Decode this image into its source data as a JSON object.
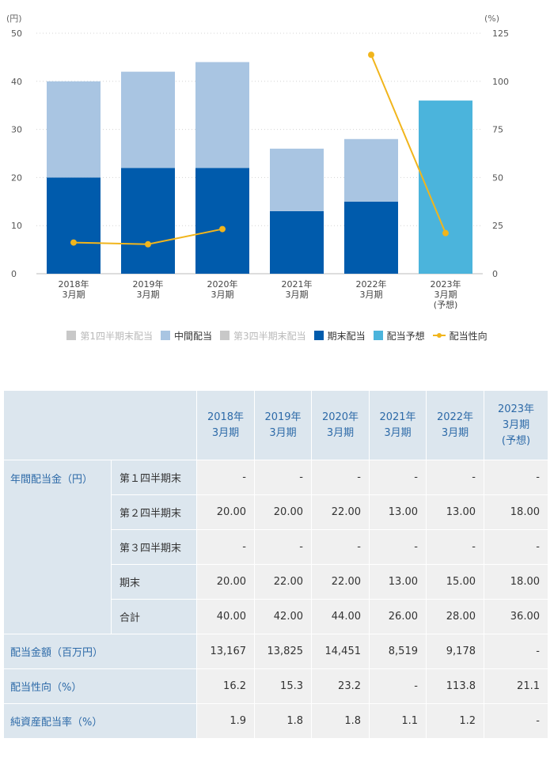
{
  "chart_data": {
    "type": "bar",
    "stacked": true,
    "categories": [
      [
        "2018年",
        "3月期"
      ],
      [
        "2019年",
        "3月期"
      ],
      [
        "2020年",
        "3月期"
      ],
      [
        "2021年",
        "3月期"
      ],
      [
        "2022年",
        "3月期"
      ],
      [
        "2023年",
        "3月期",
        "(予想)"
      ]
    ],
    "y_left": {
      "unit": "(円)",
      "range": [
        0,
        50
      ],
      "ticks": [
        0,
        10,
        20,
        30,
        40,
        50
      ]
    },
    "y_right": {
      "unit": "(%)",
      "range": [
        0,
        125
      ],
      "ticks": [
        0,
        25,
        50,
        75,
        100,
        125
      ]
    },
    "series": [
      {
        "name": "第1四半期末配当",
        "axis": "left",
        "color": "#c8c8c8",
        "values": [
          0,
          0,
          0,
          0,
          0,
          0
        ]
      },
      {
        "name": "期末配当",
        "axis": "left",
        "color": "#005bac",
        "values": [
          20,
          22,
          22,
          13,
          15,
          0
        ]
      },
      {
        "name": "中間配当",
        "axis": "left",
        "color": "#a9c5e2",
        "values": [
          20,
          20,
          22,
          13,
          13,
          0
        ]
      },
      {
        "name": "第3四半期末配当",
        "axis": "left",
        "color": "#c8c8c8",
        "values": [
          0,
          0,
          0,
          0,
          0,
          0
        ]
      },
      {
        "name": "配当予想",
        "axis": "left",
        "color": "#4bb4dc",
        "values": [
          0,
          0,
          0,
          0,
          0,
          36
        ]
      },
      {
        "name": "配当性向",
        "axis": "right",
        "type": "line",
        "color": "#f1b51c",
        "values": [
          16.2,
          15.3,
          23.2,
          null,
          113.8,
          21.1
        ]
      }
    ],
    "legend": [
      {
        "label": "第1四半期末配当",
        "color": "#c8c8c8",
        "kind": "box",
        "dim": true
      },
      {
        "label": "中間配当",
        "color": "#a9c5e2",
        "kind": "box",
        "dim": false
      },
      {
        "label": "第3四半期末配当",
        "color": "#c8c8c8",
        "kind": "box",
        "dim": true
      },
      {
        "label": "期末配当",
        "color": "#005bac",
        "kind": "box",
        "dim": false
      },
      {
        "label": "配当予想",
        "color": "#4bb4dc",
        "kind": "box",
        "dim": false
      },
      {
        "label": "配当性向",
        "color": "#f1b51c",
        "kind": "line",
        "dim": false
      }
    ]
  },
  "table": {
    "headers": [
      [
        "2018年",
        "3月期"
      ],
      [
        "2019年",
        "3月期"
      ],
      [
        "2020年",
        "3月期"
      ],
      [
        "2021年",
        "3月期"
      ],
      [
        "2022年",
        "3月期"
      ],
      [
        "2023年",
        "3月期",
        "(予想)"
      ]
    ],
    "group_label": "年間配当金（円）",
    "group_rows": [
      {
        "label": "第１四半期末",
        "values": [
          "-",
          "-",
          "-",
          "-",
          "-",
          "-"
        ]
      },
      {
        "label": "第２四半期末",
        "values": [
          "20.00",
          "20.00",
          "22.00",
          "13.00",
          "13.00",
          "18.00"
        ]
      },
      {
        "label": "第３四半期末",
        "values": [
          "-",
          "-",
          "-",
          "-",
          "-",
          "-"
        ]
      },
      {
        "label": "期末",
        "values": [
          "20.00",
          "22.00",
          "22.00",
          "13.00",
          "15.00",
          "18.00"
        ]
      },
      {
        "label": "合計",
        "values": [
          "40.00",
          "42.00",
          "44.00",
          "26.00",
          "28.00",
          "36.00"
        ]
      }
    ],
    "rows": [
      {
        "label": "配当金額（百万円）",
        "values": [
          "13,167",
          "13,825",
          "14,451",
          "8,519",
          "9,178",
          "-"
        ]
      },
      {
        "label": "配当性向（%）",
        "values": [
          "16.2",
          "15.3",
          "23.2",
          "-",
          "113.8",
          "21.1"
        ]
      },
      {
        "label": "純資産配当率（%）",
        "values": [
          "1.9",
          "1.8",
          "1.8",
          "1.1",
          "1.2",
          "-"
        ]
      }
    ]
  }
}
